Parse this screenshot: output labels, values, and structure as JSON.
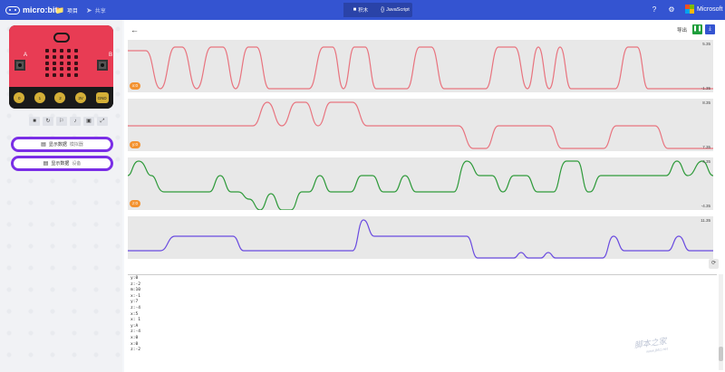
{
  "header": {
    "brand": "micro:bit",
    "nav": [
      {
        "label": "项目",
        "icon": "folder-icon"
      },
      {
        "label": "共享",
        "icon": "share-icon"
      }
    ],
    "modes": [
      {
        "label": "积木",
        "icon": "blocks-icon",
        "active": true
      },
      {
        "label": "JavaScript",
        "icon": "code-icon",
        "active": false
      }
    ],
    "microsoft": "Microsoft"
  },
  "simulator": {
    "button_a": "A",
    "button_b": "B",
    "pins": [
      "0",
      "1",
      "2",
      "3V",
      "GND"
    ],
    "data_buttons": [
      {
        "label": "显示数据",
        "sub": "模拟器"
      },
      {
        "label": "显示数据",
        "sub": "设备"
      }
    ]
  },
  "data_view": {
    "export_label": "导出",
    "charts": [
      {
        "max": "5.35",
        "min": "-1.35",
        "badge": "x:0",
        "color": "#e8747f"
      },
      {
        "max": "8.35",
        "min": "7.35",
        "badge": "y:0",
        "color": "#e8747f"
      },
      {
        "max": "4.35",
        "min": "-4.35",
        "badge": "z:0",
        "color": "#2e9a3a"
      },
      {
        "max": "11.35",
        "min": "",
        "badge": "",
        "color": "#6a4be0"
      }
    ],
    "console_lines": [
      "y:0",
      "z:-2",
      "m:10",
      "x:-1",
      "y:7",
      "z:-4",
      "x:5",
      "x: 1",
      "y:A",
      "z:-4",
      "x:0",
      "x:0",
      "z:-2"
    ]
  },
  "watermark": {
    "text": "脚本之家",
    "sub": "www.jb51.net"
  }
}
